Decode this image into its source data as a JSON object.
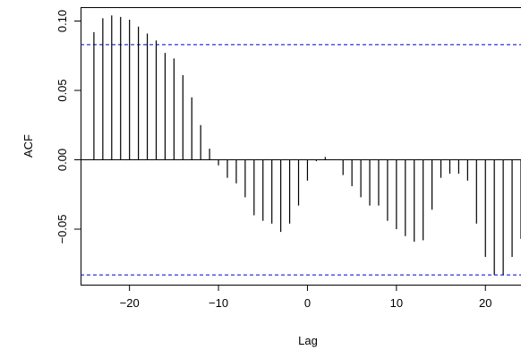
{
  "chart_data": {
    "type": "bar",
    "title": "",
    "xlabel": "Lag",
    "ylabel": "ACF",
    "xlim": [
      -25.5,
      24
    ],
    "ylim": [
      -0.09,
      0.11
    ],
    "x_ticks": [
      -20,
      -10,
      0,
      10,
      20
    ],
    "x_tick_labels": [
      "−20",
      "−10",
      "0",
      "10",
      "20"
    ],
    "y_ticks": [
      -0.05,
      0.0,
      0.05,
      0.1
    ],
    "y_tick_labels": [
      "−0.05",
      "0.00",
      "0.05",
      "0.10"
    ],
    "confidence_bound": 0.083,
    "colors": {
      "bars": "#000000",
      "zero_line": "#000000",
      "confidence_lines": "#0000cc",
      "box": "#000000"
    },
    "series": [
      {
        "x": [
          -24,
          -23,
          -22,
          -21,
          -20,
          -19,
          -18,
          -17,
          -16,
          -15,
          -14,
          -13,
          -12,
          -11,
          -10,
          -9,
          -8,
          -7,
          -6,
          -5,
          -4,
          -3,
          -2,
          -1,
          0,
          1,
          2,
          3,
          4,
          5,
          6,
          7,
          8,
          9,
          10,
          11,
          12,
          13,
          14,
          15,
          16,
          17,
          18,
          19,
          20,
          21,
          22,
          23,
          24
        ],
        "values": [
          0.092,
          0.102,
          0.104,
          0.103,
          0.101,
          0.096,
          0.091,
          0.086,
          0.077,
          0.073,
          0.061,
          0.045,
          0.025,
          0.008,
          -0.004,
          -0.013,
          -0.017,
          -0.027,
          -0.04,
          -0.044,
          -0.046,
          -0.052,
          -0.046,
          -0.033,
          -0.015,
          -0.001,
          0.002,
          0.0,
          -0.011,
          -0.019,
          -0.027,
          -0.033,
          -0.033,
          -0.044,
          -0.05,
          -0.055,
          -0.059,
          -0.058,
          -0.036,
          -0.013,
          -0.01,
          -0.01,
          -0.015,
          -0.046,
          -0.07,
          -0.083,
          -0.083,
          -0.07,
          -0.057
        ]
      }
    ]
  }
}
